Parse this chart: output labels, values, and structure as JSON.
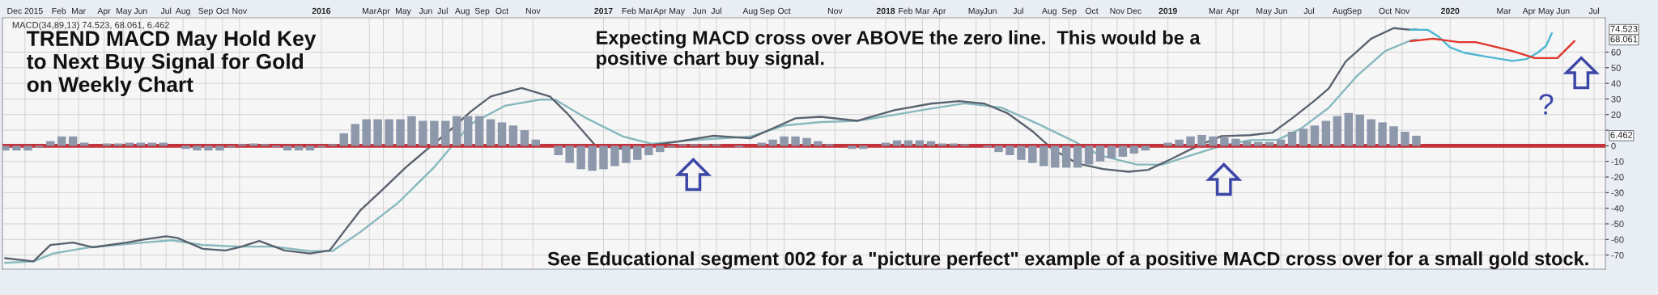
{
  "chart_data": {
    "type": "line",
    "xlim": [
      2014.87,
      2020.55
    ],
    "ylim": [
      -79,
      82
    ],
    "xticks": [
      {
        "value": 2014.95,
        "label": "Dec 2015"
      },
      {
        "value": 2015.07,
        "label": "Feb"
      },
      {
        "value": 2015.14,
        "label": "Mar"
      },
      {
        "value": 2015.23,
        "label": "Apr"
      },
      {
        "value": 2015.3,
        "label": "May"
      },
      {
        "value": 2015.36,
        "label": "Jun"
      },
      {
        "value": 2015.45,
        "label": "Jul"
      },
      {
        "value": 2015.51,
        "label": "Aug"
      },
      {
        "value": 2015.59,
        "label": "Sep"
      },
      {
        "value": 2015.65,
        "label": "Oct"
      },
      {
        "value": 2015.71,
        "label": "Nov"
      },
      2016,
      {
        "value": 2016.17,
        "label": "Mar"
      },
      {
        "value": 2016.22,
        "label": "Apr"
      },
      {
        "value": 2016.29,
        "label": "May"
      },
      {
        "value": 2016.37,
        "label": "Jun"
      },
      {
        "value": 2016.43,
        "label": "Jul"
      },
      {
        "value": 2016.5,
        "label": "Aug"
      },
      {
        "value": 2016.57,
        "label": "Sep"
      },
      {
        "value": 2016.64,
        "label": "Oct"
      },
      {
        "value": 2016.75,
        "label": "Nov"
      },
      2017,
      {
        "value": 2017.09,
        "label": "Feb"
      },
      {
        "value": 2017.15,
        "label": "Mar"
      },
      {
        "value": 2017.2,
        "label": "Apr"
      },
      {
        "value": 2017.26,
        "label": "May"
      },
      {
        "value": 2017.34,
        "label": "Jun"
      },
      {
        "value": 2017.4,
        "label": "Jul"
      },
      {
        "value": 2017.52,
        "label": "Aug"
      },
      {
        "value": 2017.58,
        "label": "Sep"
      },
      {
        "value": 2017.64,
        "label": "Oct"
      },
      {
        "value": 2017.82,
        "label": "Nov"
      },
      2018,
      {
        "value": 2018.07,
        "label": "Feb"
      },
      {
        "value": 2018.13,
        "label": "Mar"
      },
      {
        "value": 2018.19,
        "label": "Apr"
      },
      {
        "value": 2018.32,
        "label": "May"
      },
      {
        "value": 2018.37,
        "label": "Jun"
      },
      {
        "value": 2018.47,
        "label": "Jul"
      },
      {
        "value": 2018.58,
        "label": "Aug"
      },
      {
        "value": 2018.65,
        "label": "Sep"
      },
      {
        "value": 2018.73,
        "label": "Oct"
      },
      {
        "value": 2018.82,
        "label": "Nov"
      },
      {
        "value": 2018.88,
        "label": "Dec"
      },
      2019,
      {
        "value": 2019.17,
        "label": "Mar"
      },
      {
        "value": 2019.23,
        "label": "Apr"
      },
      {
        "value": 2019.34,
        "label": "May"
      },
      {
        "value": 2019.4,
        "label": "Jun"
      },
      {
        "value": 2019.5,
        "label": "Jul"
      },
      {
        "value": 2019.61,
        "label": "Aug"
      },
      {
        "value": 2019.66,
        "label": "Sep"
      },
      {
        "value": 2019.77,
        "label": "Oct"
      },
      {
        "value": 2019.83,
        "label": "Nov"
      },
      2020,
      {
        "value": 2020.19,
        "label": "Mar"
      },
      {
        "value": 2020.28,
        "label": "Apr"
      },
      {
        "value": 2020.34,
        "label": "May"
      },
      {
        "value": 2020.4,
        "label": "Jun"
      },
      {
        "value": 2020.51,
        "label": "Jul"
      }
    ],
    "yticks": [
      -70,
      -60,
      -50,
      -40,
      -30,
      -20,
      -10,
      0,
      {
        "value": 10,
        "label": null
      },
      20,
      30,
      40,
      50,
      60
    ],
    "grid": true,
    "series": [
      {
        "type": "bar",
        "color": "#8e98ab",
        "x": [
          2014.88,
          2014.92,
          2014.96,
          2015.0,
          2015.04,
          2015.08,
          2015.12,
          2015.16,
          2015.2,
          2015.24,
          2015.28,
          2015.32,
          2015.36,
          2015.4,
          2015.44,
          2015.48,
          2015.52,
          2015.56,
          2015.6,
          2015.64,
          2015.68,
          2015.72,
          2015.76,
          2015.8,
          2015.84,
          2015.88,
          2015.92,
          2015.96,
          2016.0,
          2016.04,
          2016.08,
          2016.12,
          2016.16,
          2016.2,
          2016.24,
          2016.28,
          2016.32,
          2016.36,
          2016.4,
          2016.44,
          2016.48,
          2016.52,
          2016.56,
          2016.6,
          2016.64,
          2016.68,
          2016.72,
          2016.76,
          2016.8,
          2016.84,
          2016.88,
          2016.92,
          2016.96,
          2017.0,
          2017.04,
          2017.08,
          2017.12,
          2017.16,
          2017.2,
          2017.24,
          2017.28,
          2017.32,
          2017.36,
          2017.4,
          2017.44,
          2017.48,
          2017.52,
          2017.56,
          2017.6,
          2017.64,
          2017.68,
          2017.72,
          2017.76,
          2017.8,
          2017.84,
          2017.88,
          2017.92,
          2017.96,
          2018.0,
          2018.04,
          2018.08,
          2018.12,
          2018.16,
          2018.2,
          2018.24,
          2018.28,
          2018.32,
          2018.36,
          2018.4,
          2018.44,
          2018.48,
          2018.52,
          2018.56,
          2018.6,
          2018.64,
          2018.68,
          2018.72,
          2018.76,
          2018.8,
          2018.84,
          2018.88,
          2018.92,
          2018.96,
          2019.0,
          2019.04,
          2019.08,
          2019.12,
          2019.16,
          2019.2,
          2019.24,
          2019.28,
          2019.32,
          2019.36,
          2019.4,
          2019.44,
          2019.48,
          2019.52,
          2019.56,
          2019.6,
          2019.64,
          2019.68,
          2019.72,
          2019.76,
          2019.8,
          2019.84,
          2019.88
        ],
        "values": [
          -3,
          -3,
          -3,
          -1,
          3,
          6,
          6,
          2,
          0,
          1.5,
          1.5,
          2,
          2,
          2,
          2,
          0,
          -2,
          -3,
          -3,
          -3,
          -1,
          1,
          1.5,
          1,
          -1,
          -3,
          -3,
          -3,
          -1,
          1,
          8,
          14,
          17,
          17,
          17,
          17,
          19,
          16,
          16,
          16,
          19,
          19,
          19,
          17,
          15,
          13,
          10,
          4,
          0,
          -6,
          -11,
          -15,
          -16,
          -15,
          -13,
          -11,
          -9,
          -6,
          -4,
          -1,
          1,
          1,
          1,
          1,
          0,
          -1,
          0,
          2,
          4,
          6,
          6,
          5,
          3,
          1,
          0,
          -2,
          -2,
          0,
          2,
          3.5,
          3.5,
          3.5,
          3,
          1.5,
          1.5,
          1,
          0,
          -1,
          -4,
          -6,
          -9,
          -11,
          -13,
          -14,
          -14,
          -14,
          -12,
          -10,
          -8,
          -7,
          -5,
          -3,
          0,
          2,
          4,
          6,
          7,
          6,
          5.5,
          4.5,
          3,
          2.5,
          2.5,
          4,
          9,
          11,
          13,
          16,
          19,
          21,
          20,
          17,
          15,
          12.5,
          9,
          6.462
        ]
      },
      {
        "color": "#86b8bd",
        "x": [
          2014.88,
          2014.98,
          2015.05,
          2015.18,
          2015.37,
          2015.47,
          2015.58,
          2015.71,
          2015.83,
          2015.96,
          2016.04,
          2016.14,
          2016.27,
          2016.4,
          2016.53,
          2016.65,
          2016.78,
          2016.83,
          2016.94,
          2017.07,
          2017.17,
          2017.32,
          2017.52,
          2017.64,
          2017.77,
          2017.9,
          2018.03,
          2018.16,
          2018.28,
          2018.41,
          2018.54,
          2018.67,
          2018.76,
          2018.89,
          2018.98,
          2019.08,
          2019.19,
          2019.29,
          2019.39,
          2019.47,
          2019.57,
          2019.67,
          2019.77,
          2019.86,
          2019.88
        ],
        "values": [
          -75,
          -74,
          -69,
          -65,
          -62,
          -60.5,
          -63.5,
          -64.6,
          -64.6,
          -67.4,
          -67.4,
          -55,
          -36.8,
          -13.7,
          14,
          25.6,
          29.7,
          29.5,
          17.6,
          5.9,
          1.3,
          3.6,
          5.9,
          13,
          15.2,
          16,
          19.8,
          23.8,
          27.2,
          24.5,
          14,
          2.6,
          -6.2,
          -12,
          -12,
          -6.2,
          0,
          3.6,
          3.9,
          10.9,
          24.4,
          44.8,
          60.7,
          67.5,
          68.061
        ]
      },
      {
        "color": "#59626e",
        "x": [
          2014.88,
          2014.98,
          2015.04,
          2015.12,
          2015.19,
          2015.31,
          2015.37,
          2015.45,
          2015.49,
          2015.58,
          2015.66,
          2015.71,
          2015.78,
          2015.87,
          2015.96,
          2016.03,
          2016.08,
          2016.14,
          2016.22,
          2016.3,
          2016.37,
          2016.45,
          2016.53,
          2016.6,
          2016.71,
          2016.81,
          2016.87,
          2016.97,
          2017.07,
          2017.26,
          2017.39,
          2017.52,
          2017.61,
          2017.68,
          2017.77,
          2017.9,
          2018.03,
          2018.16,
          2018.26,
          2018.35,
          2018.43,
          2018.52,
          2018.59,
          2018.68,
          2018.77,
          2018.86,
          2018.93,
          2019.01,
          2019.1,
          2019.19,
          2019.29,
          2019.37,
          2019.44,
          2019.52,
          2019.57,
          2019.63,
          2019.72,
          2019.8,
          2019.86,
          2019.88
        ],
        "values": [
          -72,
          -74,
          -63.5,
          -62,
          -65,
          -62,
          -60,
          -58,
          -59,
          -66,
          -67,
          -65,
          -61,
          -67,
          -69,
          -67,
          -55,
          -41,
          -27.5,
          -13.7,
          -3,
          9,
          22,
          31.6,
          37,
          31.6,
          21,
          0.5,
          -2,
          2.6,
          6.4,
          4.8,
          12,
          17.6,
          18.6,
          16,
          22.8,
          27,
          28.6,
          27,
          21,
          9.3,
          -2,
          -11.4,
          -14.9,
          -16.6,
          -15.4,
          -8.6,
          -0.5,
          6.2,
          6.8,
          8.4,
          17.6,
          29,
          36.8,
          54,
          68.6,
          75.4,
          74.3,
          74.523
        ]
      },
      {
        "color": "#4cb6d2",
        "x": [
          2019.86,
          2019.92,
          2019.96,
          2020.0,
          2020.05,
          2020.12,
          2020.22,
          2020.27,
          2020.31,
          2020.34,
          2020.36
        ],
        "values": [
          74.3,
          74.3,
          69.8,
          63,
          59.6,
          57.3,
          54.4,
          55.5,
          59.6,
          64,
          72
        ]
      },
      {
        "color": "#e0352b",
        "x": [
          2019.86,
          2019.94,
          2020.03,
          2020.09,
          2020.16,
          2020.22,
          2020.3,
          2020.38,
          2020.44
        ],
        "values": [
          67,
          68.6,
          66.4,
          66.4,
          63.4,
          60.7,
          56.2,
          56.2,
          67
        ]
      }
    ],
    "ref_lines": [
      {
        "axis": "y",
        "value": 0,
        "color": "#c4323b"
      }
    ],
    "annotations": [
      "TREND MACD May Hold Key\nto Next Buy Signal for Gold\non Weekly Chart",
      "Expecting MACD cross over ABOVE the zero line.  This would be a\npositive chart buy signal.",
      "See Educational segment 002 for a \"picture perfect\" example of a positive MACD cross over for a small gold stock.",
      "MACD(34,89,13) 74.523, 68.061, 6.462",
      "?",
      "74.523",
      "68.061",
      "6.462"
    ]
  }
}
